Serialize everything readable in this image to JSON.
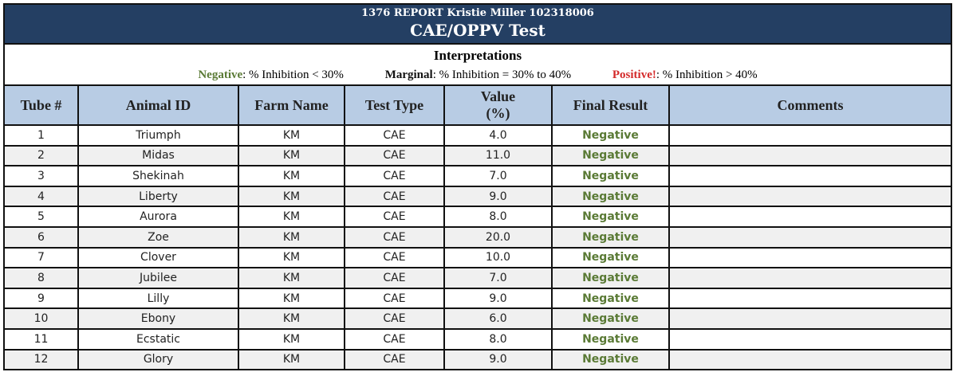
{
  "report": {
    "subtitle": "1376 REPORT Kristie Miller 102318006",
    "title": "CAE/OPPV Test"
  },
  "interpretations": {
    "heading": "Interpretations",
    "negative_label": "Negative",
    "negative_text": ": % Inhibition < 30%",
    "marginal_label": "Marginal",
    "marginal_text": ": % Inhibition = 30% to 40%",
    "positive_label": "Positive!",
    "positive_text": ": % Inhibition > 40%"
  },
  "colors": {
    "title_band": "#243f63",
    "header_fill": "#b8cce4",
    "negative": "#5a7a35",
    "positive": "#d42a2a"
  },
  "table": {
    "headers": {
      "tube": "Tube #",
      "animal_id": "Animal ID",
      "farm_name": "Farm Name",
      "test_type": "Test Type",
      "value_line1": "Value",
      "value_line2": "(%)",
      "final_result": "Final Result",
      "comments": "Comments"
    },
    "rows": [
      {
        "tube": "1",
        "animal": "Triumph",
        "farm": "KM",
        "test": "CAE",
        "value": "4.0",
        "result": "Negative",
        "comments": ""
      },
      {
        "tube": "2",
        "animal": "Midas",
        "farm": "KM",
        "test": "CAE",
        "value": "11.0",
        "result": "Negative",
        "comments": ""
      },
      {
        "tube": "3",
        "animal": "Shekinah",
        "farm": "KM",
        "test": "CAE",
        "value": "7.0",
        "result": "Negative",
        "comments": ""
      },
      {
        "tube": "4",
        "animal": "Liberty",
        "farm": "KM",
        "test": "CAE",
        "value": "9.0",
        "result": "Negative",
        "comments": ""
      },
      {
        "tube": "5",
        "animal": "Aurora",
        "farm": "KM",
        "test": "CAE",
        "value": "8.0",
        "result": "Negative",
        "comments": ""
      },
      {
        "tube": "6",
        "animal": "Zoe",
        "farm": "KM",
        "test": "CAE",
        "value": "20.0",
        "result": "Negative",
        "comments": ""
      },
      {
        "tube": "7",
        "animal": "Clover",
        "farm": "KM",
        "test": "CAE",
        "value": "10.0",
        "result": "Negative",
        "comments": ""
      },
      {
        "tube": "8",
        "animal": "Jubilee",
        "farm": "KM",
        "test": "CAE",
        "value": "7.0",
        "result": "Negative",
        "comments": ""
      },
      {
        "tube": "9",
        "animal": "Lilly",
        "farm": "KM",
        "test": "CAE",
        "value": "9.0",
        "result": "Negative",
        "comments": ""
      },
      {
        "tube": "10",
        "animal": "Ebony",
        "farm": "KM",
        "test": "CAE",
        "value": "6.0",
        "result": "Negative",
        "comments": ""
      },
      {
        "tube": "11",
        "animal": "Ecstatic",
        "farm": "KM",
        "test": "CAE",
        "value": "8.0",
        "result": "Negative",
        "comments": ""
      },
      {
        "tube": "12",
        "animal": "Glory",
        "farm": "KM",
        "test": "CAE",
        "value": "9.0",
        "result": "Negative",
        "comments": ""
      }
    ]
  }
}
